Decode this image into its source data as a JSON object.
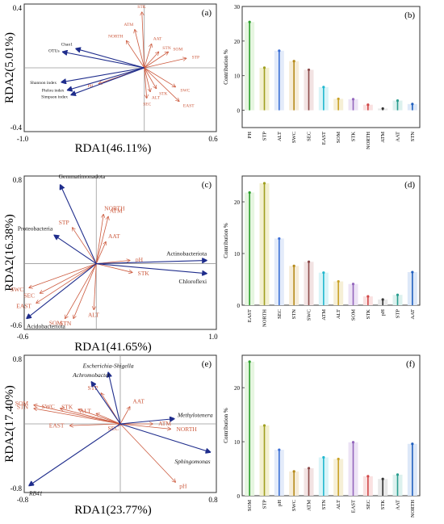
{
  "chart_data": [
    {
      "panel": "(a)",
      "type": "scatter",
      "xlabel": "RDA1(46.11%)",
      "ylabel": "RDA2(5.01%)",
      "xlim": [
        -1.0,
        0.6
      ],
      "ylim": [
        -0.4,
        0.4
      ],
      "x_ticks": [
        "-1.0",
        "0.6"
      ],
      "y_ticks": [
        "0.4",
        "-0.4"
      ],
      "env_vectors": [
        {
          "label": "STK",
          "x": -0.02,
          "y": 0.35
        },
        {
          "label": "ATM",
          "x": -0.08,
          "y": 0.24
        },
        {
          "label": "NORTH",
          "x": -0.15,
          "y": 0.17
        },
        {
          "label": "AAT",
          "x": 0.06,
          "y": 0.15
        },
        {
          "label": "STN",
          "x": 0.12,
          "y": 0.1
        },
        {
          "label": "SOM",
          "x": 0.2,
          "y": 0.1
        },
        {
          "label": "STP",
          "x": 0.35,
          "y": 0.06
        },
        {
          "label": "SWC",
          "x": 0.26,
          "y": -0.12
        },
        {
          "label": "EAST",
          "x": 0.29,
          "y": -0.21
        },
        {
          "label": "STK",
          "x": 0.1,
          "y": -0.13
        },
        {
          "label": "ALT",
          "x": 0.05,
          "y": -0.15
        },
        {
          "label": "SEC",
          "x": 0.02,
          "y": -0.19
        },
        {
          "label": "PH",
          "x": -0.38,
          "y": -0.1
        }
      ],
      "taxa_vectors": [
        {
          "label": "Chao1",
          "x": -0.57,
          "y": 0.12
        },
        {
          "label": "OTUs",
          "x": -0.68,
          "y": 0.1
        },
        {
          "label": "Shannon index",
          "x": -0.69,
          "y": -0.09
        },
        {
          "label": "Pielou index",
          "x": -0.64,
          "y": -0.14
        },
        {
          "label": "Simpson index",
          "x": -0.61,
          "y": -0.17
        }
      ]
    },
    {
      "panel": "(b)",
      "type": "bar",
      "ylabel": "Contribution %",
      "ylim": [
        -5,
        30
      ],
      "yticks": [
        0,
        10,
        20,
        30
      ],
      "categories": [
        "PH",
        "STP",
        "ALT",
        "SWC",
        "SEC",
        "EAST",
        "SOM",
        "STK",
        "NORTH",
        "ATM",
        "AAT",
        "STN"
      ],
      "values": [
        25.5,
        12.3,
        17.2,
        14.2,
        11.7,
        6.7,
        3.3,
        3.2,
        1.6,
        0.5,
        2.8,
        1.8
      ]
    },
    {
      "panel": "(c)",
      "type": "scatter",
      "xlabel": "RDA1(41.65%)",
      "ylabel": "RDA2(16.38%)",
      "xlim": [
        -0.6,
        1.0
      ],
      "ylim": [
        -0.6,
        0.8
      ],
      "x_ticks": [
        "-0.6",
        "1.0"
      ],
      "y_ticks": [
        "0.8",
        "-0.6"
      ],
      "env_vectors": [
        {
          "label": "NORTH",
          "x": 0.06,
          "y": 0.45
        },
        {
          "label": "ATM",
          "x": 0.1,
          "y": 0.43
        },
        {
          "label": "STP",
          "x": -0.2,
          "y": 0.33
        },
        {
          "label": "AAT",
          "x": 0.08,
          "y": 0.2
        },
        {
          "label": "pH",
          "x": 0.28,
          "y": 0.03
        },
        {
          "label": "STK",
          "x": 0.3,
          "y": -0.08
        },
        {
          "label": "SWC",
          "x": -0.56,
          "y": -0.22
        },
        {
          "label": "SEC",
          "x": -0.47,
          "y": -0.27
        },
        {
          "label": "EAST",
          "x": -0.5,
          "y": -0.36
        },
        {
          "label": "SOM",
          "x": -0.26,
          "y": -0.5
        },
        {
          "label": "STN",
          "x": -0.19,
          "y": -0.5
        },
        {
          "label": "ALT",
          "x": -0.02,
          "y": -0.42
        }
      ],
      "taxa_vectors": [
        {
          "label": "Gemmatimonadota",
          "x": -0.3,
          "y": 0.72
        },
        {
          "label": "Proteobacteria",
          "x": -0.35,
          "y": 0.26
        },
        {
          "label": "Actinobacteriota",
          "x": 0.92,
          "y": 0.03
        },
        {
          "label": "Chloroflexi",
          "x": 0.92,
          "y": -0.09
        },
        {
          "label": "Acidobacteriota",
          "x": -0.58,
          "y": -0.5
        }
      ]
    },
    {
      "panel": "(d)",
      "type": "bar",
      "ylabel": "Contribution %",
      "ylim": [
        0,
        25
      ],
      "yticks": [
        0,
        10,
        20
      ],
      "categories": [
        "EAST",
        "NORTH",
        "SEC",
        "STN",
        "SWC",
        "ATM",
        "ALT",
        "SOM",
        "STK",
        "pH",
        "STP",
        "AAT"
      ],
      "values": [
        21.8,
        23.6,
        12.9,
        7.6,
        8.4,
        6.3,
        4.6,
        4.1,
        1.7,
        1.1,
        2.0,
        6.4
      ]
    },
    {
      "panel": "(e)",
      "type": "scatter",
      "xlabel": "RDA1(23.77%)",
      "ylabel": "RDA2(17.40%)",
      "xlim": [
        -0.8,
        0.8
      ],
      "ylim": [
        -0.8,
        0.8
      ],
      "x_ticks": [
        "-0.8",
        "0.8"
      ],
      "y_ticks": [
        "0.8",
        "-0.8"
      ],
      "env_vectors": [
        {
          "label": "SOM",
          "x": -0.72,
          "y": 0.22
        },
        {
          "label": "STN",
          "x": -0.72,
          "y": 0.18
        },
        {
          "label": "SWC",
          "x": -0.5,
          "y": 0.18
        },
        {
          "label": "STK",
          "x": -0.35,
          "y": 0.17
        },
        {
          "label": "STP",
          "x": -0.16,
          "y": 0.36
        },
        {
          "label": "AAT",
          "x": 0.08,
          "y": 0.2
        },
        {
          "label": "ALT",
          "x": -0.2,
          "y": 0.12
        },
        {
          "label": "EAST",
          "x": -0.42,
          "y": -0.02
        },
        {
          "label": "SEC",
          "x": -0.02,
          "y": -0.02
        },
        {
          "label": "ATM",
          "x": 0.27,
          "y": 0.0
        },
        {
          "label": "NORTH",
          "x": 0.42,
          "y": -0.06
        },
        {
          "label": "pH",
          "x": 0.46,
          "y": -0.68
        }
      ],
      "taxa_vectors": [
        {
          "label": "Escherichia-Shigella",
          "x": -0.1,
          "y": 0.6
        },
        {
          "label": "Achromobacter",
          "x": -0.24,
          "y": 0.49
        },
        {
          "label": "Methylotenera",
          "x": 0.45,
          "y": 0.06
        },
        {
          "label": "Sphingomonas",
          "x": 0.75,
          "y": -0.33
        },
        {
          "label": "RB41",
          "x": -0.76,
          "y": -0.72
        }
      ]
    },
    {
      "panel": "(f)",
      "type": "bar",
      "ylabel": "Contribution %",
      "ylim": [
        0,
        26
      ],
      "yticks": [
        0,
        10,
        20
      ],
      "categories": [
        "SOM",
        "STP",
        "pH",
        "SWC",
        "ATM",
        "STN",
        "ALT",
        "EAST",
        "SEC",
        "STK",
        "AAT",
        "NORTH"
      ],
      "values": [
        24.8,
        13.0,
        8.5,
        4.5,
        5.1,
        7.1,
        6.8,
        9.9,
        3.6,
        3.1,
        3.9,
        9.6
      ]
    }
  ]
}
